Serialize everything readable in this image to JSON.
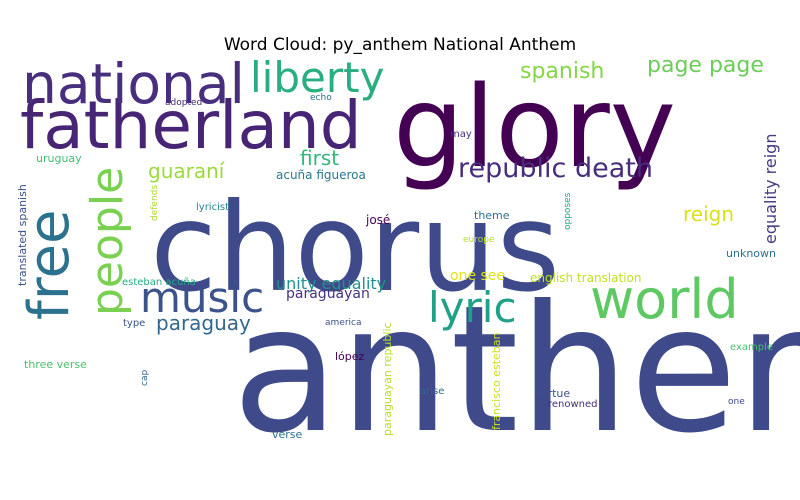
{
  "chart_data": {
    "type": "wordcloud",
    "title": "Word Cloud: py_anthem National Anthem",
    "background": "#ffffff",
    "colormap": "viridis",
    "words": [
      {
        "text": "anthem",
        "weight": 100,
        "color": "#3e4a89"
      },
      {
        "text": "chorus",
        "weight": 64,
        "color": "#3e4a89"
      },
      {
        "text": "glory",
        "weight": 59,
        "color": "#440154"
      },
      {
        "text": "fatherland",
        "weight": 35,
        "color": "#482475"
      },
      {
        "text": "national",
        "weight": 29,
        "color": "#472f7d"
      },
      {
        "text": "free",
        "weight": 28,
        "color": "#2c728e"
      },
      {
        "text": "world",
        "weight": 28,
        "color": "#5ec962"
      },
      {
        "text": "people",
        "weight": 22,
        "color": "#7ad151"
      },
      {
        "text": "liberty",
        "weight": 21,
        "color": "#29af7f"
      },
      {
        "text": "music",
        "weight": 21,
        "color": "#3b528b"
      },
      {
        "text": "lyric",
        "weight": 21,
        "color": "#1fa187"
      },
      {
        "text": "republic death",
        "weight": 14,
        "color": "#472d7b"
      },
      {
        "text": "page page",
        "weight": 12,
        "color": "#6ccd5a"
      },
      {
        "text": "spanish",
        "weight": 12,
        "color": "#86d549"
      },
      {
        "text": "guaraní",
        "weight": 11,
        "color": "#9bd93c"
      },
      {
        "text": "first",
        "weight": 11,
        "color": "#35b779"
      },
      {
        "text": "paraguay",
        "weight": 11,
        "color": "#31688e"
      },
      {
        "text": "reign",
        "weight": 10,
        "color": "#d8e219"
      },
      {
        "text": "equality reign",
        "weight": 8,
        "color": "#443983"
      },
      {
        "text": "unity equality",
        "weight": 8,
        "color": "#21918c"
      },
      {
        "text": "paraguayan",
        "weight": 7,
        "color": "#46337e"
      },
      {
        "text": "one see",
        "weight": 7,
        "color": "#dde318"
      },
      {
        "text": "english translation",
        "weight": 6,
        "color": "#c2df23"
      },
      {
        "text": "acuña figueroa",
        "weight": 5,
        "color": "#2a768e"
      },
      {
        "text": "uruguay",
        "weight": 5,
        "color": "#42be71"
      },
      {
        "text": "josé",
        "weight": 5,
        "color": "#440154"
      },
      {
        "text": "theme",
        "weight": 4,
        "color": "#2d708e"
      },
      {
        "text": "lyricist",
        "weight": 4,
        "color": "#25858e"
      },
      {
        "text": "esteban acuña",
        "weight": 4,
        "color": "#25ab82"
      },
      {
        "text": "translated spanish",
        "weight": 4,
        "color": "#3b528b"
      },
      {
        "text": "paraguayan republic",
        "weight": 4,
        "color": "#b5de2b"
      },
      {
        "text": "francisco esteban",
        "weight": 4,
        "color": "#cae11f"
      },
      {
        "text": "unknown",
        "weight": 4,
        "color": "#2c728e"
      },
      {
        "text": "example",
        "weight": 4,
        "color": "#4ac16d"
      },
      {
        "text": "three verse",
        "weight": 4,
        "color": "#4ac16d"
      },
      {
        "text": "verse",
        "weight": 4,
        "color": "#2c728e"
      },
      {
        "text": "virtue",
        "weight": 4,
        "color": "#3b528b"
      },
      {
        "text": "renowned",
        "weight": 4,
        "color": "#472d7b"
      },
      {
        "text": "arise",
        "weight": 4,
        "color": "#31688e"
      },
      {
        "text": "one",
        "weight": 4,
        "color": "#3e4a89"
      },
      {
        "text": "may",
        "weight": 4,
        "color": "#472f7d"
      },
      {
        "text": "echo",
        "weight": 3,
        "color": "#2d708e"
      },
      {
        "text": "adopted",
        "weight": 3,
        "color": "#482878"
      },
      {
        "text": "defends",
        "weight": 3,
        "color": "#addc30"
      },
      {
        "text": "opposes",
        "weight": 3,
        "color": "#21a685"
      },
      {
        "text": "europe",
        "weight": 3,
        "color": "#b5de2b"
      },
      {
        "text": "america",
        "weight": 3,
        "color": "#3b528b"
      },
      {
        "text": "type",
        "weight": 3,
        "color": "#3b528b"
      },
      {
        "text": "cap",
        "weight": 3,
        "color": "#31688e"
      },
      {
        "text": "lópez",
        "weight": 5,
        "color": "#440154"
      }
    ]
  }
}
